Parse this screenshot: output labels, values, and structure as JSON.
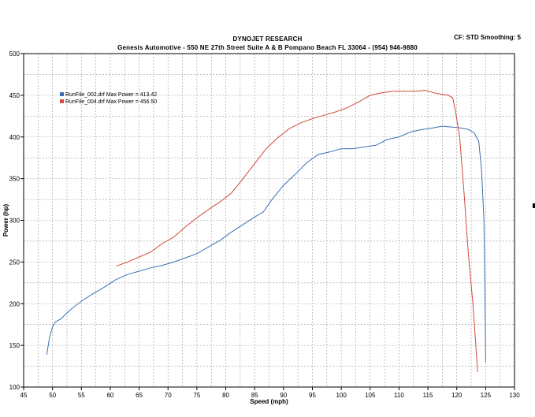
{
  "header": {
    "title": "DYNOJET RESEARCH",
    "subtitle": "Genesis Automotive - 550 NE 27th Street Suite A & B Pompano Beach FL 33064 - (954) 946-9880",
    "info": "CF: STD  Smoothing: 5"
  },
  "chart_data": {
    "type": "line",
    "title": "DYNOJET RESEARCH",
    "xlabel": "Speed (mph)",
    "ylabel": "Power (hp)",
    "xlim": [
      45,
      130
    ],
    "ylim": [
      100,
      500
    ],
    "xticks": [
      45,
      50,
      55,
      60,
      65,
      70,
      75,
      80,
      85,
      90,
      95,
      100,
      105,
      110,
      115,
      120,
      125,
      130
    ],
    "yticks": [
      100,
      150,
      200,
      250,
      300,
      350,
      400,
      450,
      500
    ],
    "grid": true,
    "legend_position": "top-left",
    "series": [
      {
        "name": "RunFile_002.drf Max Power = 413.42",
        "color": "#3a6fb5",
        "x": [
          49.0,
          49.5,
          50.0,
          50.5,
          51.5,
          52.5,
          53.5,
          55.0,
          57.0,
          59.0,
          61.0,
          63.0,
          65.0,
          67.0,
          69.0,
          71.0,
          73.0,
          75.0,
          77.0,
          79.0,
          81.0,
          83.0,
          85.0,
          86.5,
          88.0,
          90.0,
          92.0,
          94.0,
          96.0,
          98.0,
          100.0,
          102.0,
          104.0,
          106.0,
          108.0,
          110.0,
          112.0,
          114.0,
          116.0,
          117.5,
          119.0,
          120.5,
          122.0,
          123.0,
          123.8,
          124.3,
          124.7,
          124.9,
          125.0
        ],
        "y": [
          139,
          160,
          172,
          178,
          182,
          189,
          195,
          203,
          212,
          220,
          229,
          235,
          239,
          243,
          246,
          250,
          255,
          260,
          268,
          276,
          286,
          295,
          304,
          310,
          325,
          342,
          355,
          369,
          379,
          382,
          386,
          386,
          388,
          390,
          397,
          400,
          406,
          409,
          411,
          413,
          412,
          411,
          409,
          405,
          395,
          360,
          300,
          200,
          130
        ]
      },
      {
        "name": "RunFile_004.drf Max Power = 456.50",
        "color": "#d24a3a",
        "x": [
          61.0,
          63.0,
          65.0,
          67.0,
          69.0,
          71.0,
          73.0,
          75.0,
          77.0,
          79.0,
          81.0,
          83.0,
          85.0,
          87.0,
          89.0,
          91.0,
          93.0,
          95.0,
          97.0,
          99.0,
          101.0,
          103.0,
          105.0,
          107.0,
          109.0,
          111.0,
          113.0,
          114.5,
          116.0,
          117.5,
          118.5,
          119.3,
          119.8,
          120.5,
          121.3,
          122.0,
          122.8,
          123.3,
          123.6
        ],
        "y": [
          245,
          250,
          256,
          262,
          272,
          280,
          292,
          303,
          313,
          322,
          333,
          350,
          368,
          386,
          399,
          410,
          417,
          422,
          426,
          430,
          435,
          442,
          450,
          453,
          455,
          455,
          455,
          456,
          453,
          451,
          450,
          447,
          430,
          400,
          330,
          260,
          200,
          150,
          118
        ]
      }
    ]
  }
}
